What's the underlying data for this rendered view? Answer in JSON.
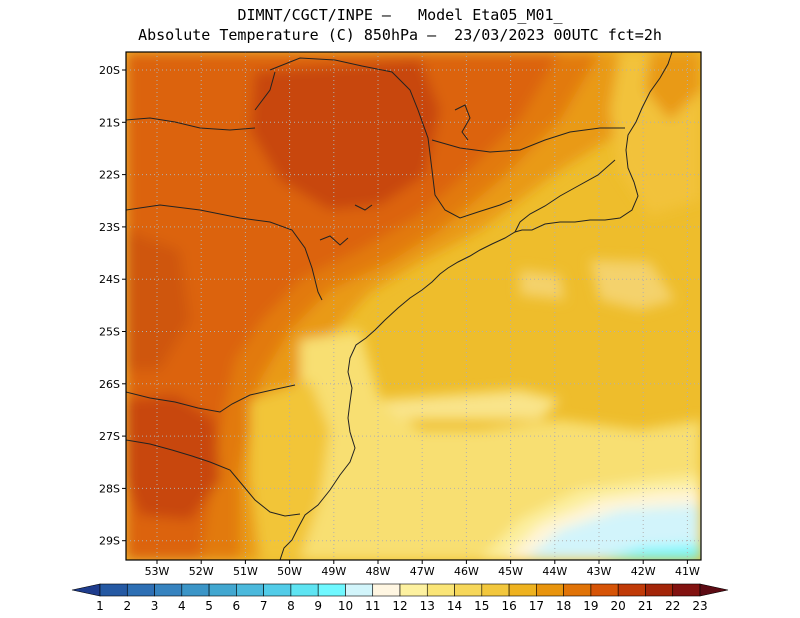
{
  "title": {
    "line1": "DIMNT/CGCT/INPE –   Model Eta05_M01_",
    "line2": "Absolute Temperature (C) 850hPa –  23/03/2023 00UTC fct=2h"
  },
  "map": {
    "lat_labels": [
      "20S",
      "21S",
      "22S",
      "23S",
      "24S",
      "25S",
      "26S",
      "27S",
      "28S",
      "29S"
    ],
    "lon_labels": [
      "53W",
      "52W",
      "51W",
      "50W",
      "49W",
      "48W",
      "47W",
      "46W",
      "45W",
      "44W",
      "43W",
      "42W",
      "41W"
    ],
    "grid": "dotted"
  },
  "colorbar": {
    "labels": [
      "1",
      "2",
      "3",
      "4",
      "5",
      "6",
      "7",
      "8",
      "9",
      "10",
      "11",
      "12",
      "13",
      "14",
      "15",
      "16",
      "17",
      "18",
      "19",
      "20",
      "21",
      "22",
      "23"
    ],
    "colors": [
      "#1e3c8c",
      "#2559a3",
      "#2e6fb4",
      "#3683bf",
      "#3b95c7",
      "#42a7d0",
      "#4bb9dc",
      "#52cce8",
      "#5ee4f2",
      "#6ff8ff",
      "#d2f5fb",
      "#fff6e2",
      "#fdf1a0",
      "#fae577",
      "#f6d75a",
      "#f2c73d",
      "#eeb21f",
      "#e8940d",
      "#e07307",
      "#d65407",
      "#c03a08",
      "#a32509",
      "#821210",
      "#5c0b14"
    ]
  }
}
